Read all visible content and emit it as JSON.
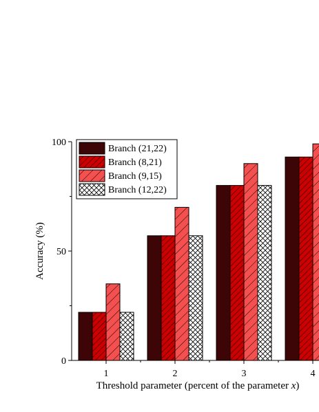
{
  "chart_data": {
    "type": "bar",
    "xlabel": "Threshold parameter (percent of the parameter ",
    "xlabel_var": "x",
    "xlabel_end": ")",
    "ylabel": "Accuracy (%)",
    "categories": [
      "1",
      "2",
      "3",
      "4"
    ],
    "ylim": [
      0,
      100
    ],
    "yticks": [
      "0",
      "50",
      "100"
    ],
    "legend_position": "top-left",
    "series": [
      {
        "name": "Branch (21,22)",
        "values": [
          22,
          57,
          80,
          93
        ],
        "color": "#3d0505",
        "pattern": "solid"
      },
      {
        "name": "Branch (8,21)",
        "values": [
          22,
          57,
          80,
          93
        ],
        "color": "#cc0000",
        "pattern": "hatch-dense"
      },
      {
        "name": "Branch (9,15)",
        "values": [
          35,
          70,
          90,
          99
        ],
        "color": "#f45050",
        "pattern": "hatch-sparse"
      },
      {
        "name": "Branch (12,22)",
        "values": [
          22,
          57,
          80,
          null
        ],
        "color": "#ffffff",
        "pattern": "crosshatch"
      }
    ]
  }
}
